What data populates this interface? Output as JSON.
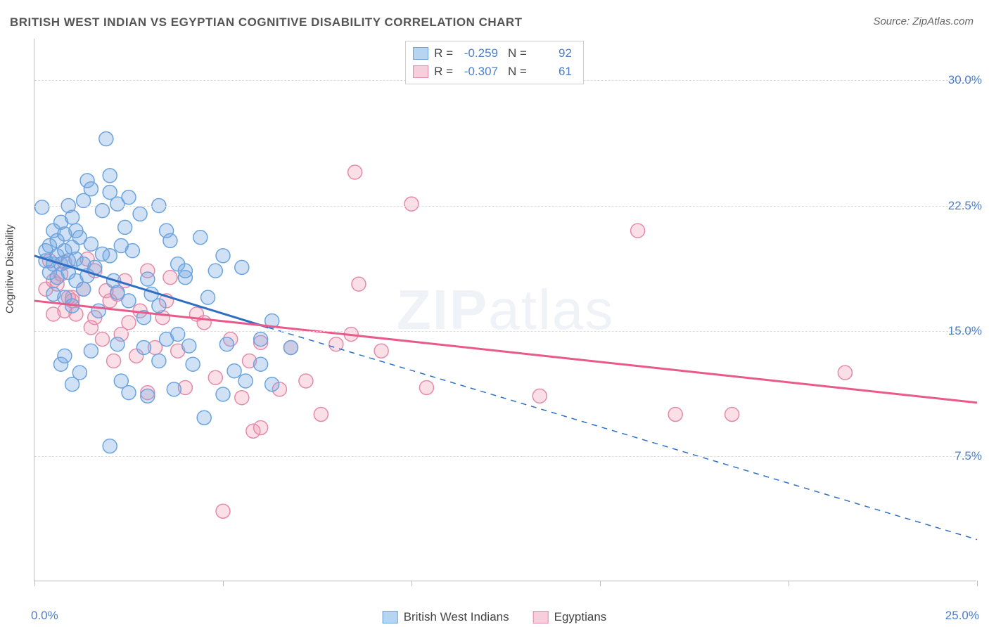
{
  "title": "BRITISH WEST INDIAN VS EGYPTIAN COGNITIVE DISABILITY CORRELATION CHART",
  "source_label": "Source: ZipAtlas.com",
  "ylabel": "Cognitive Disability",
  "watermark_a": "ZIP",
  "watermark_b": "atlas",
  "chart": {
    "type": "scatter",
    "xlim": [
      0,
      25
    ],
    "ylim": [
      0,
      32.5
    ],
    "x_ticks": [
      0,
      5,
      10,
      15,
      20,
      25
    ],
    "y_ticks": [
      7.5,
      15.0,
      22.5,
      30.0
    ],
    "y_tick_labels": [
      "7.5%",
      "15.0%",
      "22.5%",
      "30.0%"
    ],
    "x_min_label": "0.0%",
    "x_max_label": "25.0%",
    "background_color": "#ffffff",
    "grid_color": "#dddddd",
    "axis_color": "#bbbbbb",
    "marker_radius": 10,
    "marker_stroke_width": 1.5,
    "trend_line_width": 3,
    "trend_dash_width": 1.5,
    "series": [
      {
        "id": "bwi",
        "name": "British West Indians",
        "fill": "rgba(120,170,225,0.35)",
        "stroke": "#6aa3de",
        "line_color": "#2e6fc4",
        "swatch_fill": "#b7d4f0",
        "swatch_border": "#6aa3de",
        "R": "-0.259",
        "N": "92",
        "trend": {
          "x1": 0,
          "y1": 19.5,
          "x2": 6.2,
          "y2": 15.2,
          "dash_x2": 25,
          "dash_y2": 2.5
        },
        "points": [
          [
            0.2,
            22.4
          ],
          [
            0.3,
            19.2
          ],
          [
            0.3,
            19.8
          ],
          [
            0.4,
            20.1
          ],
          [
            0.4,
            18.5
          ],
          [
            0.5,
            19.0
          ],
          [
            0.5,
            21.0
          ],
          [
            0.5,
            17.2
          ],
          [
            0.6,
            19.5
          ],
          [
            0.6,
            20.4
          ],
          [
            0.6,
            18.2
          ],
          [
            0.7,
            19.0
          ],
          [
            0.7,
            21.5
          ],
          [
            0.7,
            13.0
          ],
          [
            0.8,
            19.8
          ],
          [
            0.8,
            20.8
          ],
          [
            0.8,
            17.0
          ],
          [
            0.8,
            13.5
          ],
          [
            0.9,
            18.5
          ],
          [
            0.9,
            19.2
          ],
          [
            0.9,
            22.5
          ],
          [
            1.0,
            20.0
          ],
          [
            1.0,
            21.8
          ],
          [
            1.0,
            16.5
          ],
          [
            1.0,
            11.8
          ],
          [
            1.1,
            19.3
          ],
          [
            1.1,
            18.0
          ],
          [
            1.1,
            21.0
          ],
          [
            1.2,
            20.6
          ],
          [
            1.2,
            12.5
          ],
          [
            1.3,
            19.0
          ],
          [
            1.3,
            22.8
          ],
          [
            1.3,
            17.5
          ],
          [
            1.4,
            18.3
          ],
          [
            1.4,
            24.0
          ],
          [
            1.5,
            20.2
          ],
          [
            1.5,
            23.5
          ],
          [
            1.5,
            13.8
          ],
          [
            1.6,
            18.8
          ],
          [
            1.7,
            16.2
          ],
          [
            1.8,
            22.2
          ],
          [
            1.8,
            19.6
          ],
          [
            1.9,
            26.5
          ],
          [
            2.0,
            24.3
          ],
          [
            2.0,
            23.3
          ],
          [
            2.0,
            19.5
          ],
          [
            2.0,
            8.1
          ],
          [
            2.1,
            18.0
          ],
          [
            2.2,
            22.6
          ],
          [
            2.2,
            14.2
          ],
          [
            2.2,
            17.3
          ],
          [
            2.3,
            20.1
          ],
          [
            2.3,
            12.0
          ],
          [
            2.4,
            21.2
          ],
          [
            2.5,
            11.3
          ],
          [
            2.5,
            23.0
          ],
          [
            2.5,
            16.8
          ],
          [
            2.6,
            19.8
          ],
          [
            2.8,
            22.0
          ],
          [
            2.9,
            15.8
          ],
          [
            2.9,
            14.0
          ],
          [
            3.0,
            18.1
          ],
          [
            3.0,
            11.1
          ],
          [
            3.1,
            17.2
          ],
          [
            3.3,
            22.5
          ],
          [
            3.3,
            13.2
          ],
          [
            3.3,
            16.5
          ],
          [
            3.5,
            14.5
          ],
          [
            3.5,
            21.0
          ],
          [
            3.6,
            20.4
          ],
          [
            3.7,
            11.5
          ],
          [
            3.8,
            14.8
          ],
          [
            3.8,
            19.0
          ],
          [
            4.0,
            18.2
          ],
          [
            4.0,
            18.6
          ],
          [
            4.1,
            14.1
          ],
          [
            4.2,
            13.0
          ],
          [
            4.4,
            20.6
          ],
          [
            4.5,
            9.8
          ],
          [
            4.6,
            17.0
          ],
          [
            4.8,
            18.6
          ],
          [
            5.0,
            11.2
          ],
          [
            5.0,
            19.5
          ],
          [
            5.1,
            14.2
          ],
          [
            5.3,
            12.6
          ],
          [
            5.5,
            18.8
          ],
          [
            5.6,
            12.0
          ],
          [
            6.0,
            14.5
          ],
          [
            6.0,
            13.0
          ],
          [
            6.3,
            11.8
          ],
          [
            6.3,
            15.6
          ],
          [
            6.8,
            14.0
          ]
        ]
      },
      {
        "id": "egy",
        "name": "Egyptians",
        "fill": "rgba(238,140,170,0.28)",
        "stroke": "#e48aaa",
        "line_color": "#e85a8a",
        "swatch_fill": "#f7cfdc",
        "swatch_border": "#e48aaa",
        "R": "-0.307",
        "N": "61",
        "trend": {
          "x1": 0,
          "y1": 16.8,
          "x2": 25,
          "y2": 10.7,
          "dash_x2": null,
          "dash_y2": null
        },
        "points": [
          [
            0.3,
            17.5
          ],
          [
            0.4,
            19.2
          ],
          [
            0.5,
            18.0
          ],
          [
            0.5,
            16.0
          ],
          [
            0.6,
            17.8
          ],
          [
            0.7,
            18.4
          ],
          [
            0.8,
            19.1
          ],
          [
            0.8,
            16.2
          ],
          [
            0.9,
            17.0
          ],
          [
            1.0,
            16.8
          ],
          [
            1.0,
            17.0
          ],
          [
            1.1,
            16.0
          ],
          [
            1.3,
            17.5
          ],
          [
            1.4,
            19.3
          ],
          [
            1.5,
            15.2
          ],
          [
            1.6,
            15.8
          ],
          [
            1.6,
            18.6
          ],
          [
            1.8,
            14.5
          ],
          [
            1.9,
            17.4
          ],
          [
            2.0,
            16.8
          ],
          [
            2.1,
            13.2
          ],
          [
            2.2,
            17.2
          ],
          [
            2.3,
            14.8
          ],
          [
            2.4,
            18.0
          ],
          [
            2.5,
            15.5
          ],
          [
            2.7,
            13.5
          ],
          [
            2.8,
            16.2
          ],
          [
            3.0,
            18.6
          ],
          [
            3.0,
            11.3
          ],
          [
            3.2,
            14.0
          ],
          [
            3.4,
            15.8
          ],
          [
            3.5,
            16.8
          ],
          [
            3.6,
            18.2
          ],
          [
            3.8,
            13.8
          ],
          [
            4.0,
            11.6
          ],
          [
            4.3,
            16.0
          ],
          [
            4.5,
            15.5
          ],
          [
            4.8,
            12.2
          ],
          [
            5.0,
            4.2
          ],
          [
            5.2,
            14.5
          ],
          [
            5.5,
            11.0
          ],
          [
            5.7,
            13.2
          ],
          [
            5.8,
            9.0
          ],
          [
            6.0,
            9.2
          ],
          [
            6.0,
            14.3
          ],
          [
            6.5,
            11.5
          ],
          [
            6.8,
            14.0
          ],
          [
            7.2,
            12.0
          ],
          [
            7.6,
            10.0
          ],
          [
            8.0,
            14.2
          ],
          [
            8.4,
            14.8
          ],
          [
            8.5,
            24.5
          ],
          [
            8.6,
            17.8
          ],
          [
            9.2,
            13.8
          ],
          [
            10.0,
            22.6
          ],
          [
            10.4,
            11.6
          ],
          [
            13.4,
            11.1
          ],
          [
            16.0,
            21.0
          ],
          [
            17.0,
            10.0
          ],
          [
            18.5,
            10.0
          ],
          [
            21.5,
            12.5
          ]
        ]
      }
    ]
  },
  "legend_stats": {
    "R_label": "R =",
    "N_label": "N ="
  }
}
